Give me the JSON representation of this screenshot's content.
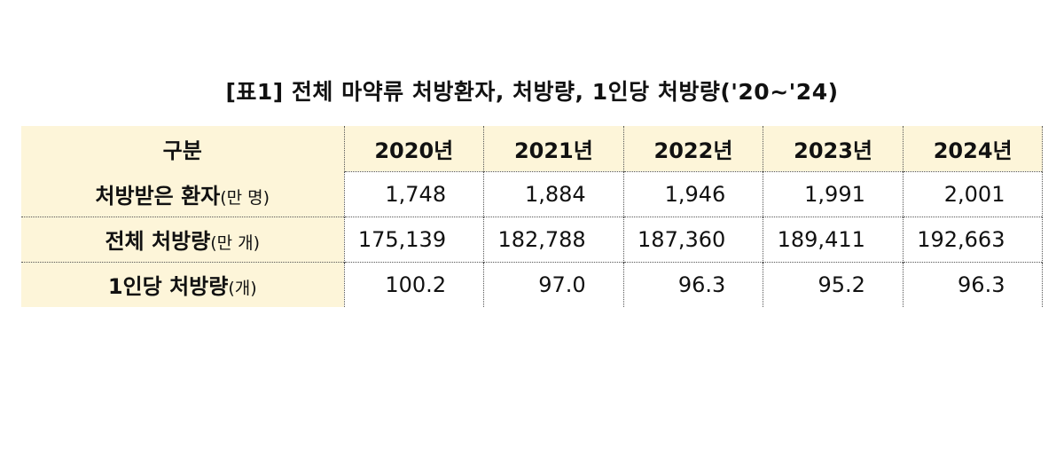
{
  "title": "[표1] 전체 마약류 처방환자, 처방량, 1인당 처방량('20~'24)",
  "table": {
    "header": [
      "구분",
      "2020년",
      "2021년",
      "2022년",
      "2023년",
      "2024년"
    ],
    "rows": [
      {
        "label": "처방받은 환자",
        "unit": "(만 명)",
        "values": [
          "1,748",
          "1,884",
          "1,946",
          "1,991",
          "2,001"
        ]
      },
      {
        "label": "전체 처방량",
        "unit": "(만 개)",
        "values": [
          "175,139",
          "182,788",
          "187,360",
          "189,411",
          "192,663"
        ]
      },
      {
        "label": "1인당 처방량",
        "unit": "(개)",
        "values": [
          "100.2",
          "97.0",
          "96.3",
          "95.2",
          "96.3"
        ]
      }
    ]
  },
  "colors": {
    "header_background": "#fdf5d9",
    "border": "#555555",
    "text": "#111111"
  }
}
